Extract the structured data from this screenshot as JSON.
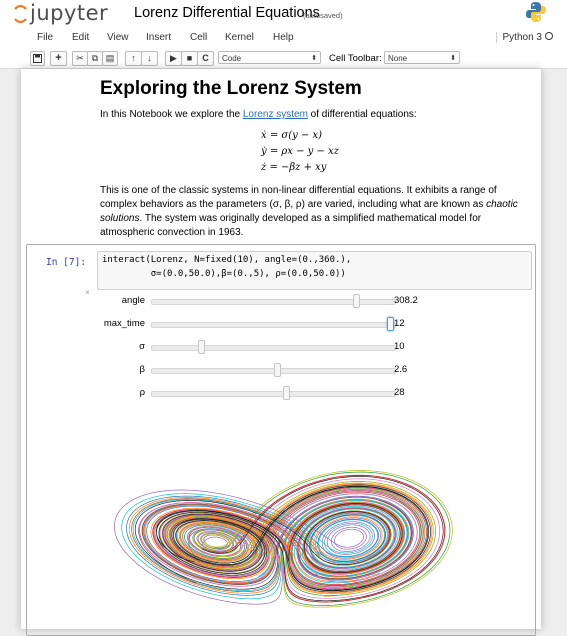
{
  "header": {
    "logo_text": "jupyter",
    "notebook_name": "Lorenz Differential Equations",
    "autosave_status": "(autosaved)"
  },
  "menubar": {
    "items": [
      "File",
      "Edit",
      "View",
      "Insert",
      "Cell",
      "Kernel",
      "Help"
    ],
    "kernel_name": "Python 3"
  },
  "toolbar": {
    "icons": [
      "save-icon",
      "plus-icon",
      "cut-icon",
      "copy-icon",
      "paste-icon",
      "arrow-up-icon",
      "arrow-down-icon",
      "run-icon",
      "stop-icon",
      "restart-icon"
    ],
    "cell_type": "Code",
    "cell_toolbar_label": "Cell Toolbar:",
    "cell_toolbar_value": "None"
  },
  "markdown": {
    "title": "Exploring the Lorenz System",
    "intro_before": "In this Notebook we explore the ",
    "intro_link": "Lorenz system",
    "intro_after": " of differential equations:",
    "equations": [
      "ẋ = σ(y − x)",
      "ẏ = ρx − y − xz",
      "ż = −βz + xy"
    ],
    "para_part1": "This is one of the classic systems in non-linear differential equations. It exhibits a range of complex behaviors as the parameters (σ, β, ρ) are varied, including what are known as ",
    "para_italic": "chaotic solutions",
    "para_part2": ". The system was originally developed as a simplified mathematical model for atmospheric convection in 1963."
  },
  "code_cell": {
    "prompt": "In [7]:",
    "line1": "interact(Lorenz, N=fixed(10), angle=(0.,360.),",
    "line2": "         σ=(0.0,50.0),β=(0.,5), ρ=(0.0,50.0))"
  },
  "widgets": {
    "close_glyph": "×",
    "sliders": [
      {
        "label": "angle",
        "value": "308.2",
        "fraction": 0.856
      },
      {
        "label": "max_time",
        "value": "12",
        "fraction": 1.0
      },
      {
        "label": "σ",
        "value": "10",
        "fraction": 0.2
      },
      {
        "label": "β",
        "value": "2.6",
        "fraction": 0.52
      },
      {
        "label": "ρ",
        "value": "28",
        "fraction": 0.56
      }
    ]
  },
  "plot": {
    "colors": [
      "#1f77b4",
      "#2ca02c",
      "#d62728",
      "#9467bd",
      "#17becf",
      "#bcbd22",
      "#8c564b",
      "#e377c2",
      "#ff7f0e",
      "#222222"
    ]
  }
}
